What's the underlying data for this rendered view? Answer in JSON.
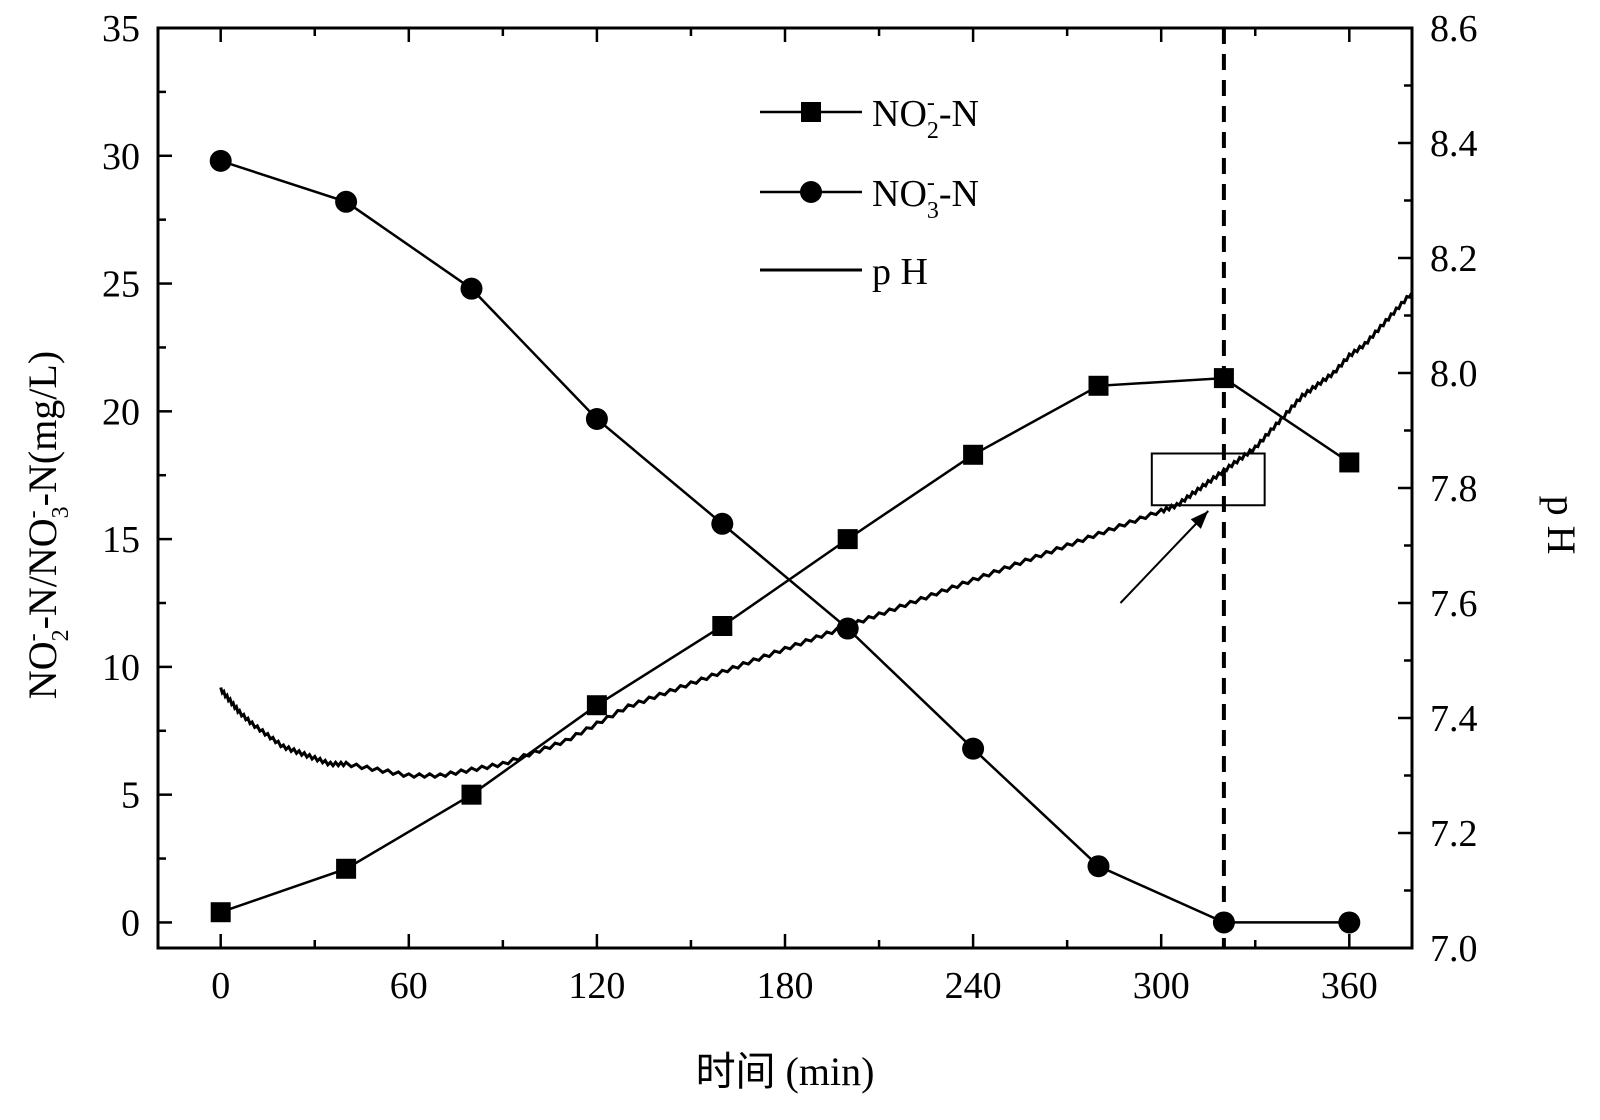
{
  "chart_data": {
    "type": "line",
    "xlabel": "时间 (min)",
    "ylabel_left": {
      "main": "NO",
      "sub1": "2",
      "sup1": "-",
      "mid": "-N/NO",
      "sub2": "3",
      "sup2": "-",
      "tail": "-N(mg/L)"
    },
    "ylabel_right": "p H",
    "xlim": [
      -20,
      380
    ],
    "ylim_left": [
      -1,
      35
    ],
    "ylim_right": [
      7.0,
      8.6
    ],
    "x_ticks": [
      0,
      60,
      120,
      180,
      240,
      300,
      360
    ],
    "x_tick_labels": [
      "0",
      "60",
      "120",
      "180",
      "240",
      "300",
      "360"
    ],
    "y_left_ticks": [
      0,
      5,
      10,
      15,
      20,
      25,
      30,
      35
    ],
    "y_left_tick_labels": [
      "0",
      "5",
      "10",
      "15",
      "20",
      "25",
      "30",
      "35"
    ],
    "y_right_ticks": [
      7.0,
      7.2,
      7.4,
      7.6,
      7.8,
      8.0,
      8.2,
      8.4,
      8.6
    ],
    "y_right_tick_labels": [
      "7.0",
      "7.2",
      "7.4",
      "7.6",
      "7.8",
      "8.0",
      "8.2",
      "8.4",
      "8.6"
    ],
    "series": [
      {
        "name": "NO2- -N",
        "legend": {
          "base": "NO",
          "sub": "2",
          "sup": "-",
          "tail": "-N"
        },
        "marker": "square",
        "axis": "left",
        "x": [
          0,
          40,
          80,
          120,
          160,
          200,
          240,
          280,
          320,
          360
        ],
        "y": [
          0.4,
          2.1,
          5.0,
          8.5,
          11.6,
          15.0,
          18.3,
          21.0,
          21.3,
          18.0
        ]
      },
      {
        "name": "NO3- -N",
        "legend": {
          "base": "NO",
          "sub": "3",
          "sup": "-",
          "tail": "-N"
        },
        "marker": "circle",
        "axis": "left",
        "x": [
          0,
          40,
          80,
          120,
          160,
          200,
          240,
          280,
          320,
          360
        ],
        "y": [
          29.8,
          28.2,
          24.8,
          19.7,
          15.6,
          11.5,
          6.8,
          2.2,
          0.0,
          0.0
        ]
      },
      {
        "name": "p H",
        "legend_text": "p H",
        "marker": "none",
        "axis": "right",
        "x": [
          0,
          3,
          6,
          10,
          15,
          20,
          25,
          30,
          35,
          40,
          50,
          60,
          70,
          80,
          90,
          100,
          110,
          120,
          130,
          140,
          150,
          160,
          170,
          180,
          190,
          200,
          210,
          220,
          230,
          240,
          250,
          260,
          270,
          280,
          290,
          300,
          305,
          310,
          315,
          320,
          325,
          330,
          335,
          340,
          345,
          350,
          355,
          360,
          365,
          370,
          375,
          380
        ],
        "y": [
          7.45,
          7.43,
          7.41,
          7.39,
          7.37,
          7.35,
          7.34,
          7.33,
          7.32,
          7.32,
          7.31,
          7.3,
          7.3,
          7.31,
          7.32,
          7.34,
          7.36,
          7.39,
          7.42,
          7.44,
          7.46,
          7.48,
          7.5,
          7.52,
          7.54,
          7.56,
          7.58,
          7.6,
          7.62,
          7.64,
          7.66,
          7.68,
          7.7,
          7.72,
          7.74,
          7.76,
          7.77,
          7.79,
          7.81,
          7.83,
          7.85,
          7.87,
          7.9,
          7.93,
          7.96,
          7.98,
          8.0,
          8.03,
          8.05,
          8.08,
          8.11,
          8.14
        ]
      }
    ],
    "annotations": {
      "vertical_dashed_line_x": 320,
      "highlight_box": {
        "x": [
          297,
          333
        ],
        "y_right": [
          7.77,
          7.86
        ]
      },
      "arrow": {
        "from": [
          287,
          7.6
        ],
        "to": [
          315,
          7.76
        ]
      }
    },
    "legend_position": "top-center",
    "grid": false
  }
}
